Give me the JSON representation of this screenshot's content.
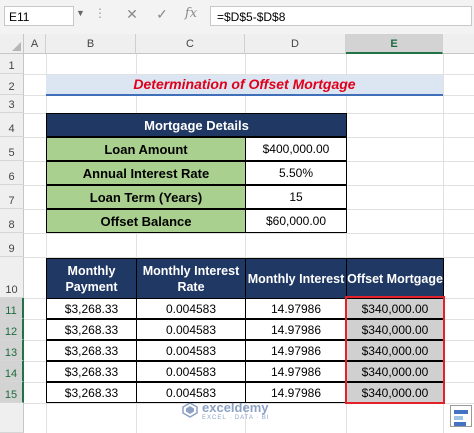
{
  "formula_bar": {
    "name_box": "E11",
    "cancel_icon": "✕",
    "enter_icon": "✓",
    "fx_icon": "fx",
    "formula": "=$D$5-$D$8"
  },
  "columns": [
    "A",
    "B",
    "C",
    "D",
    "E"
  ],
  "selected_column": "E",
  "rows": [
    "1",
    "2",
    "3",
    "4",
    "5",
    "6",
    "7",
    "8",
    "9",
    "10",
    "11",
    "12",
    "13",
    "14",
    "15"
  ],
  "selected_rows": [
    "11",
    "12",
    "13",
    "14",
    "15"
  ],
  "title": "Determination of Offset Mortgage",
  "mortgage_details": {
    "header": "Mortgage Details",
    "items": [
      {
        "label": "Loan Amount",
        "value": "$400,000.00"
      },
      {
        "label": "Annual Interest Rate",
        "value": "5.50%"
      },
      {
        "label": "Loan Term (Years)",
        "value": "15"
      },
      {
        "label": "Offset Balance",
        "value": "$60,000.00"
      }
    ]
  },
  "payment_table": {
    "headers": [
      "Monthly Payment",
      "Monthly Interest Rate",
      "Monthly Interest",
      "Offset Mortgage"
    ],
    "rows": [
      [
        "$3,268.33",
        "0.004583",
        "14.97986",
        "$340,000.00"
      ],
      [
        "$3,268.33",
        "0.004583",
        "14.97986",
        "$340,000.00"
      ],
      [
        "$3,268.33",
        "0.004583",
        "14.97986",
        "$340,000.00"
      ],
      [
        "$3,268.33",
        "0.004583",
        "14.97986",
        "$340,000.00"
      ],
      [
        "$3,268.33",
        "0.004583",
        "14.97986",
        "$340,000.00"
      ]
    ]
  },
  "watermark": {
    "name": "exceldemy",
    "tagline": "EXCEL · DATA · BI"
  },
  "colors": {
    "table_header": "#203864",
    "label_fill": "#a9d08e",
    "title_text": "#e0001b",
    "selection": "#e2222b",
    "excel_green": "#217346"
  }
}
